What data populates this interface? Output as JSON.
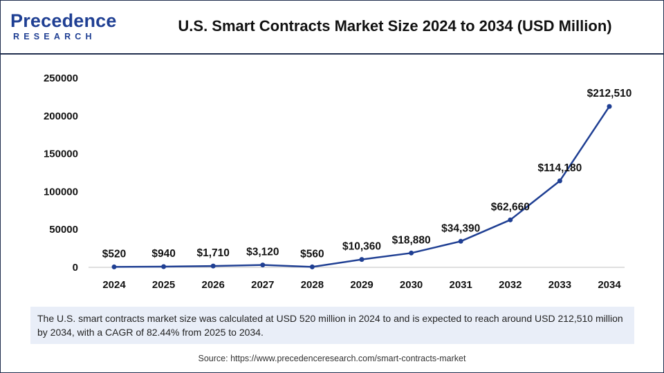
{
  "header": {
    "logo_line1": "Precedence",
    "logo_line2": "RESEARCH",
    "title": "U.S. Smart Contracts Market Size 2024 to 2034 (USD Million)"
  },
  "chart_data": {
    "type": "line",
    "title": "U.S. Smart Contracts Market Size 2024 to 2034 (USD Million)",
    "xlabel": "",
    "ylabel": "",
    "categories": [
      "2024",
      "2025",
      "2026",
      "2027",
      "2028",
      "2029",
      "2030",
      "2031",
      "2032",
      "2033",
      "2034"
    ],
    "values": [
      520,
      940,
      1710,
      3120,
      560,
      10360,
      18880,
      34390,
      62660,
      114180,
      212510
    ],
    "data_labels": [
      "$520",
      "$940",
      "$1,710",
      "$3,120",
      "$560",
      "$10,360",
      "$18,880",
      "$34,390",
      "$62,660",
      "$114,180",
      "$212,510"
    ],
    "y_ticks": [
      0,
      50000,
      100000,
      150000,
      200000,
      250000
    ],
    "ylim": [
      0,
      250000
    ],
    "grid": false,
    "legend": "none",
    "line_color": "#1f3f93"
  },
  "note": "The U.S. smart contracts market size was calculated at USD 520 million in 2024 to and is expected to reach around USD 212,510 million by 2034, with a CAGR of 82.44% from 2025 to 2034.",
  "source": "Source: https://www.precedenceresearch.com/smart-contracts-market"
}
